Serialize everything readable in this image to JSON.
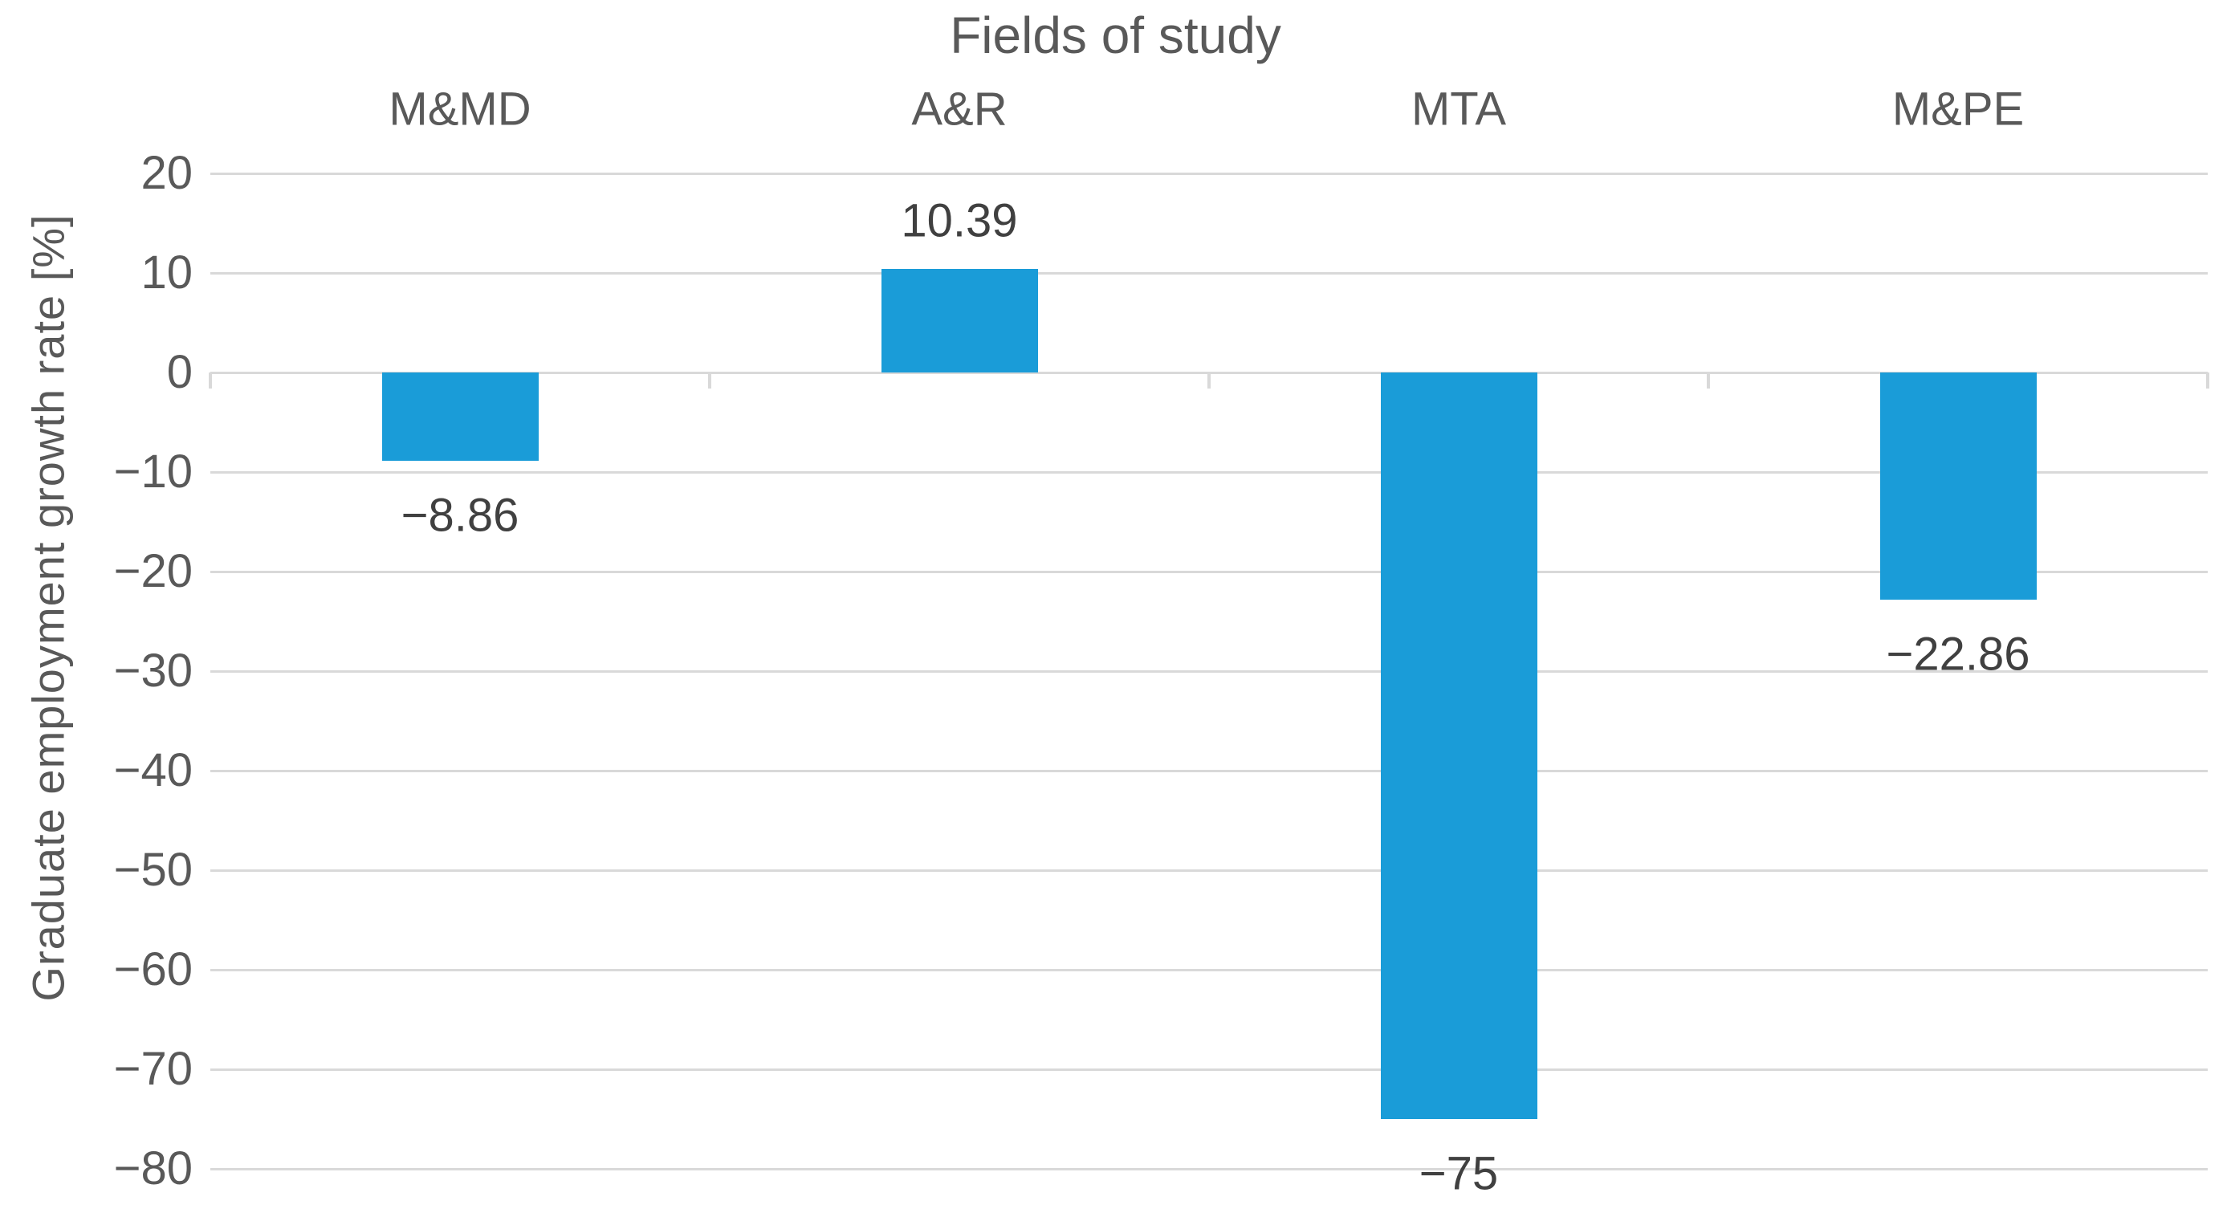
{
  "chart_data": {
    "type": "bar",
    "title": "Fields of study",
    "ylabel": "Graduate employment growth rate [%]",
    "xlabel": "",
    "categories": [
      "M&MD",
      "A&R",
      "MTA",
      "M&PE"
    ],
    "values": [
      -8.86,
      10.39,
      -75,
      -22.86
    ],
    "data_labels": [
      "−8.86",
      "10.39",
      "−75",
      "−22.86"
    ],
    "ylim": [
      -80,
      20
    ],
    "ytick_step": 10,
    "ytick_labels": [
      "20",
      "10",
      "0",
      "−10",
      "−20",
      "−30",
      "−40",
      "−50",
      "−60",
      "−70",
      "−80"
    ],
    "grid": true,
    "legend_position": "none",
    "colors": {
      "bar": "#1A9CD8",
      "gridline": "#D9D9D9",
      "axis_text": "#595959",
      "data_label": "#404040",
      "background": "#FFFFFF"
    }
  }
}
